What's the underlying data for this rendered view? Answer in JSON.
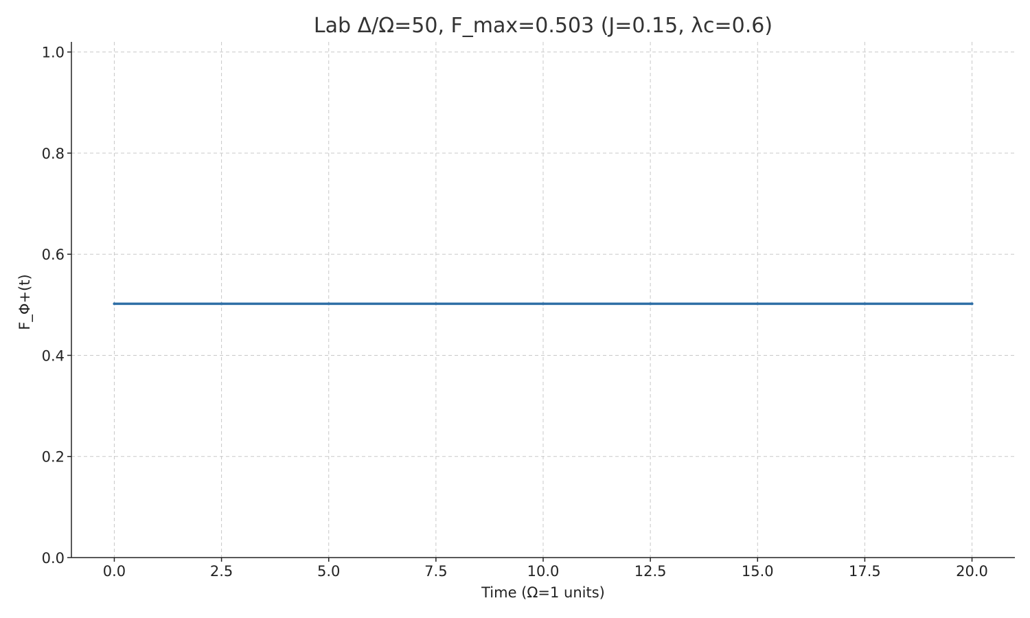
{
  "chart_data": {
    "type": "line",
    "title": "Lab Δ/Ω=50, F_max=0.503 (J=0.15, λc=0.6)",
    "xlabel": "Time (Ω=1 units)",
    "ylabel": "F_Φ+(t)",
    "xlim": [
      -1.0,
      21.0
    ],
    "ylim": [
      0.0,
      1.02
    ],
    "xticks": [
      0.0,
      2.5,
      5.0,
      7.5,
      10.0,
      12.5,
      15.0,
      17.5,
      20.0
    ],
    "xtick_labels": [
      "0.0",
      "2.5",
      "5.0",
      "7.5",
      "10.0",
      "12.5",
      "15.0",
      "17.5",
      "20.0"
    ],
    "yticks": [
      0.0,
      0.2,
      0.4,
      0.6,
      0.8,
      1.0
    ],
    "ytick_labels": [
      "0.0",
      "0.2",
      "0.4",
      "0.6",
      "0.8",
      "1.0"
    ],
    "grid": true,
    "series": [
      {
        "color": "#2f6fa6",
        "x": [
          0.0,
          2.5,
          5.0,
          7.5,
          10.0,
          12.5,
          15.0,
          17.5,
          20.0
        ],
        "y": [
          0.502,
          0.502,
          0.502,
          0.502,
          0.502,
          0.502,
          0.502,
          0.502,
          0.502
        ]
      }
    ]
  }
}
